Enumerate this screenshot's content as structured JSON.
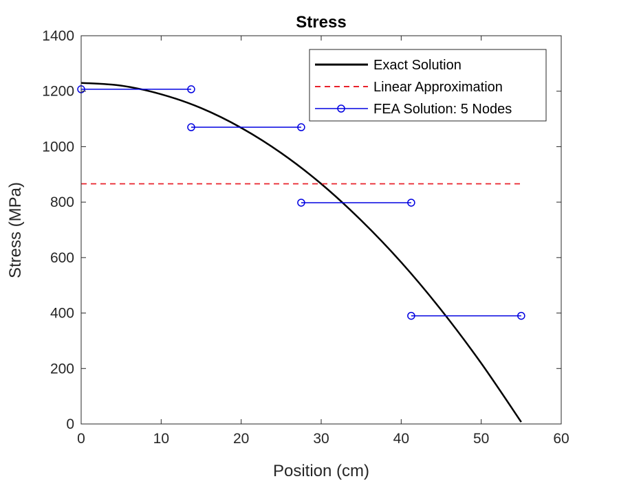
{
  "chart_data": {
    "type": "line",
    "title": "Stress",
    "xlabel": "Position (cm)",
    "ylabel": "Stress (MPa)",
    "xlim": [
      0,
      60
    ],
    "ylim": [
      0,
      1400
    ],
    "xticks": [
      0,
      10,
      20,
      30,
      40,
      50,
      60
    ],
    "yticks": [
      0,
      200,
      400,
      600,
      800,
      1000,
      1200,
      1400
    ],
    "grid": false,
    "legend_position": "top-right",
    "series": [
      {
        "name": "Exact Solution",
        "style": "solid",
        "color": "#000000",
        "x": [
          0,
          5,
          10,
          15,
          20,
          25,
          30,
          35,
          40,
          45,
          50,
          55
        ],
        "y": [
          1230,
          1220,
          1189,
          1139,
          1068,
          977,
          866,
          734,
          583,
          411,
          219,
          7
        ]
      },
      {
        "name": "Linear Approximation",
        "style": "dashed",
        "color": "#e8202a",
        "x": [
          0,
          55
        ],
        "y": [
          866,
          866
        ]
      },
      {
        "name": "FEA Solution: 5 Nodes",
        "style": "solid-markers",
        "color": "#0000e0",
        "segments": [
          {
            "x": [
              0,
              13.75
            ],
            "y": [
              1207,
              1207
            ]
          },
          {
            "x": [
              13.75,
              27.5
            ],
            "y": [
              1070,
              1070
            ]
          },
          {
            "x": [
              27.5,
              41.25
            ],
            "y": [
              798,
              798
            ]
          },
          {
            "x": [
              41.25,
              55
            ],
            "y": [
              390,
              390
            ]
          }
        ]
      }
    ]
  }
}
